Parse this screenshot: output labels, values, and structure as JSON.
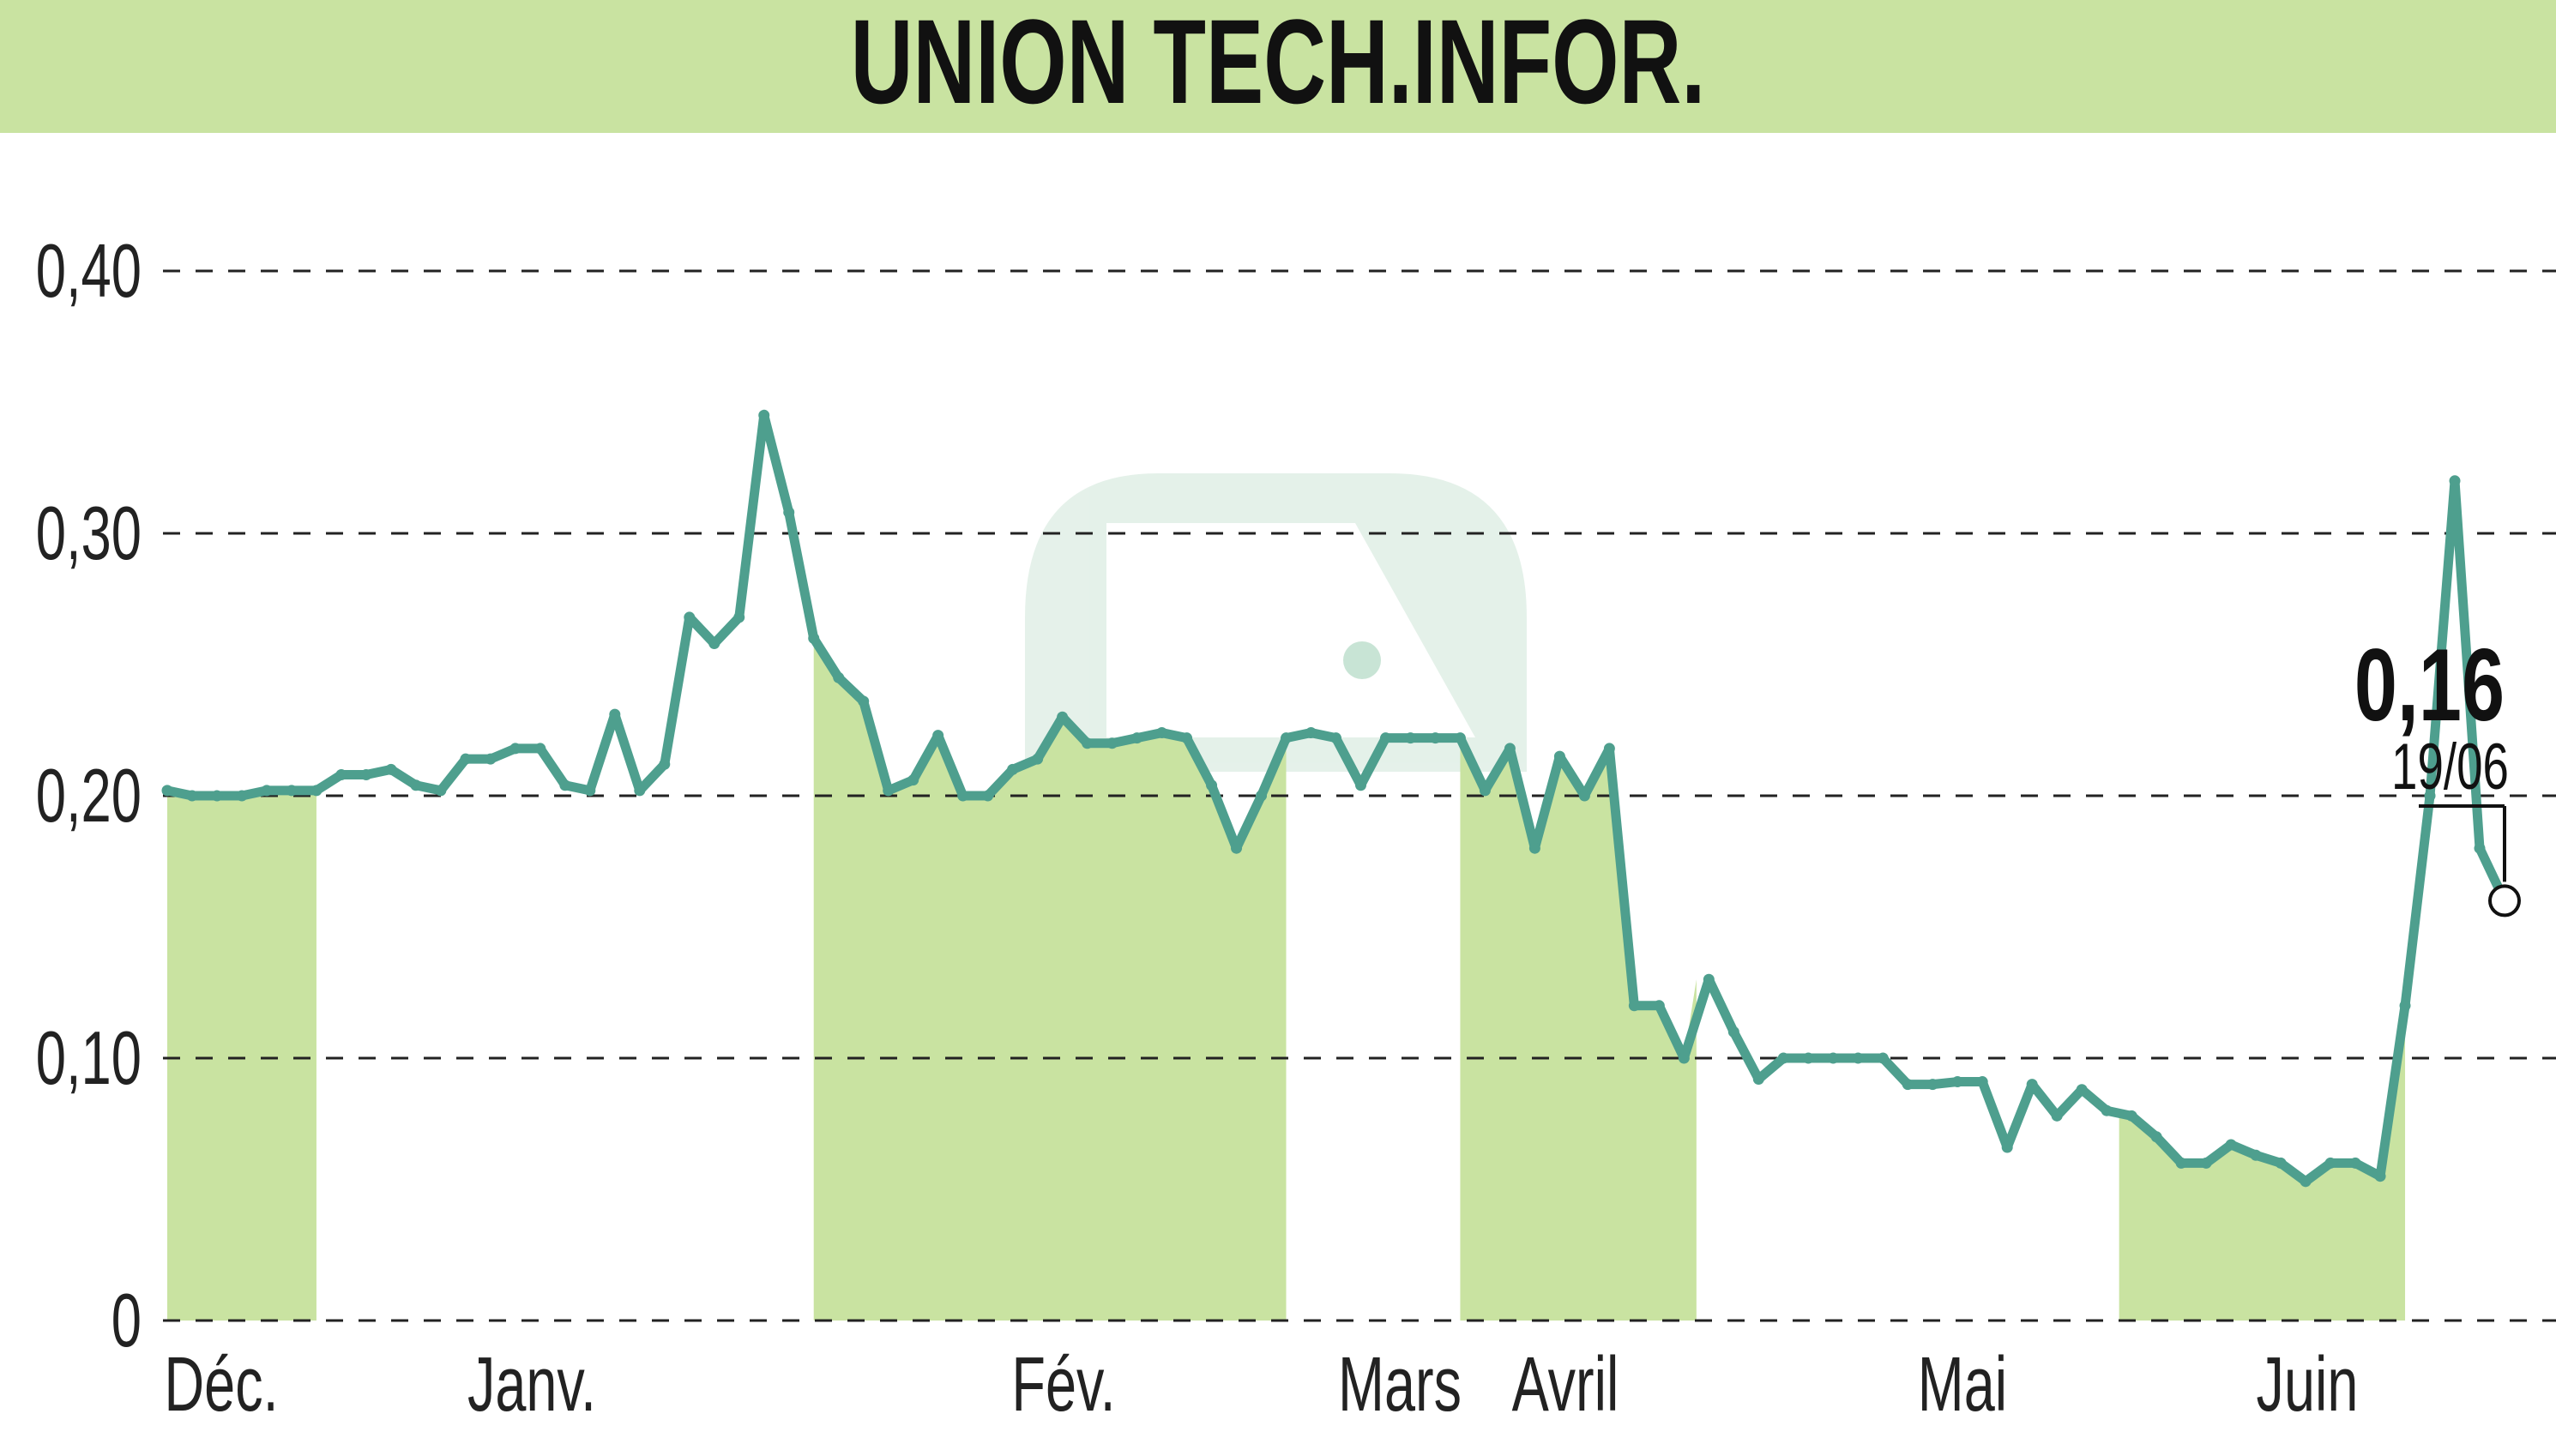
{
  "chart_data": {
    "type": "line",
    "title": "UNION TECH.INFOR.",
    "xlabel": "",
    "ylabel": "",
    "ylim": [
      0,
      0.45
    ],
    "grid": true,
    "y_ticks": [
      {
        "value": 0,
        "label": "0"
      },
      {
        "value": 0.1,
        "label": "0,10"
      },
      {
        "value": 0.2,
        "label": "0,20"
      },
      {
        "value": 0.3,
        "label": "0,30"
      },
      {
        "value": 0.4,
        "label": "0,40"
      }
    ],
    "months": [
      {
        "label": "Déc.",
        "start": 0,
        "end": 6,
        "shaded": true
      },
      {
        "label": "Janv.",
        "start": 6,
        "end": 26,
        "shaded": false
      },
      {
        "label": "Fév.",
        "start": 26,
        "end": 45,
        "shaded": true
      },
      {
        "label": "Mars",
        "start": 45,
        "end": 52,
        "shaded": false
      },
      {
        "label": "Avril",
        "start": 52,
        "end": 61.5,
        "shaded": true
      },
      {
        "label": "Mai",
        "start": 61.5,
        "end": 78.5,
        "shaded": false
      },
      {
        "label": "Juin",
        "start": 78.5,
        "end": 90,
        "shaded": true
      }
    ],
    "series": [
      {
        "values": [
          0.202,
          0.2,
          0.2,
          0.2,
          0.202,
          0.202,
          0.202,
          0.208,
          0.208,
          0.21,
          0.204,
          0.202,
          0.214,
          0.214,
          0.218,
          0.218,
          0.204,
          0.202,
          0.231,
          0.202,
          0.212,
          0.268,
          0.258,
          0.268,
          0.345,
          0.308,
          0.26,
          0.245,
          0.236,
          0.202,
          0.206,
          0.223,
          0.2,
          0.2,
          0.21,
          0.214,
          0.23,
          0.22,
          0.22,
          0.222,
          0.224,
          0.222,
          0.204,
          0.18,
          0.2,
          0.222,
          0.224,
          0.222,
          0.204,
          0.222,
          0.222,
          0.222,
          0.222,
          0.202,
          0.218,
          0.18,
          0.215,
          0.2,
          0.218,
          0.12,
          0.12,
          0.1,
          0.13,
          0.11,
          0.092,
          0.1,
          0.1,
          0.1,
          0.1,
          0.1,
          0.09,
          0.09,
          0.091,
          0.091,
          0.066,
          0.09,
          0.078,
          0.088,
          0.08,
          0.078,
          0.07,
          0.06,
          0.06,
          0.067,
          0.063,
          0.06,
          0.053,
          0.06,
          0.06,
          0.055,
          0.12,
          0.2,
          0.32,
          0.18,
          0.16
        ]
      }
    ],
    "last_value": {
      "label": "0,16",
      "date": "19/06"
    }
  },
  "colors": {
    "line": "#4e9f8e",
    "fill": "#c9e3a1",
    "title_bar": "#c9e3a1",
    "title_text": "#111111",
    "grid": "#222222",
    "axis_text": "#222222"
  }
}
